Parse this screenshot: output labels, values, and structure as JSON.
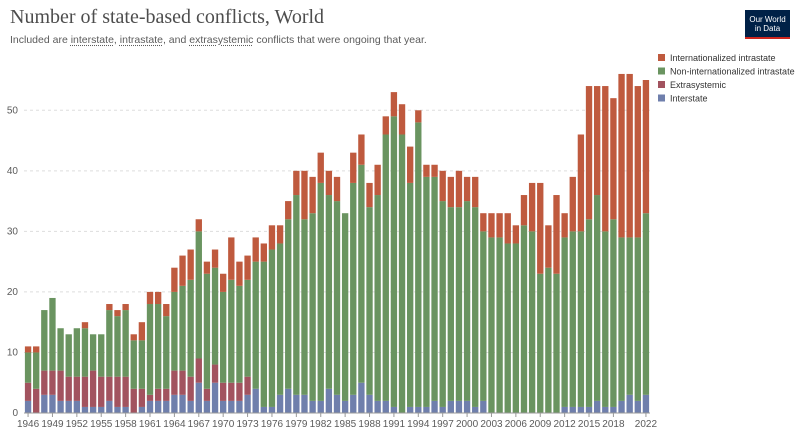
{
  "header": {
    "title": "Number of state-based conflicts, World",
    "subtitle_pre": "Included are ",
    "subtitle_link1": "interstate",
    "subtitle_sep1": ", ",
    "subtitle_link2": "intrastate",
    "subtitle_sep2": ", and ",
    "subtitle_link3": "extrasystemic",
    "subtitle_post": " conflicts that were ongoing that year."
  },
  "logo": {
    "line1": "Our World",
    "line2": "in Data"
  },
  "colors": {
    "Interstate": "#6f7fac",
    "Extrasystemic": "#a2535f",
    "Non-internationalized intrastate": "#6a9460",
    "Internationalized intrastate": "#bf5a3e",
    "grid": "#dddddd"
  },
  "chart_data": {
    "type": "bar",
    "stacked": true,
    "title": "Number of state-based conflicts, World",
    "ylim": [
      0,
      55
    ],
    "yticks": [
      0,
      10,
      20,
      30,
      40,
      50
    ],
    "grid": "horizontal dashed",
    "legend_position": "right",
    "x": [
      1946,
      1947,
      1948,
      1949,
      1950,
      1951,
      1952,
      1953,
      1954,
      1955,
      1956,
      1957,
      1958,
      1959,
      1960,
      1961,
      1962,
      1963,
      1964,
      1965,
      1966,
      1967,
      1968,
      1969,
      1970,
      1971,
      1972,
      1973,
      1974,
      1975,
      1976,
      1977,
      1978,
      1979,
      1980,
      1981,
      1982,
      1983,
      1984,
      1985,
      1986,
      1987,
      1988,
      1989,
      1990,
      1991,
      1992,
      1993,
      1994,
      1995,
      1996,
      1997,
      1998,
      1999,
      2000,
      2001,
      2002,
      2003,
      2004,
      2005,
      2006,
      2007,
      2008,
      2009,
      2010,
      2011,
      2012,
      2013,
      2014,
      2015,
      2016,
      2017,
      2018,
      2019,
      2020,
      2021,
      2022
    ],
    "xtick_labels": [
      "1946",
      "1949",
      "1952",
      "1955",
      "1958",
      "1961",
      "1964",
      "1967",
      "1970",
      "1973",
      "1976",
      "1979",
      "1982",
      "1985",
      "1988",
      "1991",
      "1994",
      "1997",
      "2000",
      "2003",
      "2006",
      "2009",
      "2012",
      "2015",
      "2018",
      "2022"
    ],
    "series": [
      {
        "name": "Interstate",
        "values": [
          2,
          0,
          3,
          3,
          2,
          2,
          2,
          1,
          1,
          1,
          2,
          1,
          1,
          0,
          1,
          2,
          2,
          2,
          3,
          3,
          2,
          5,
          2,
          5,
          2,
          2,
          2,
          3,
          4,
          1,
          1,
          3,
          4,
          3,
          3,
          2,
          2,
          4,
          3,
          2,
          3,
          5,
          3,
          2,
          2,
          1,
          0,
          1,
          1,
          1,
          2,
          1,
          2,
          2,
          2,
          1,
          2,
          0,
          0,
          0,
          0,
          0,
          0,
          0,
          0,
          0,
          1,
          1,
          1,
          1,
          2,
          1,
          1,
          2,
          3,
          2,
          3
        ]
      },
      {
        "name": "Extrasystemic",
        "values": [
          3,
          4,
          4,
          4,
          5,
          4,
          4,
          5,
          6,
          5,
          4,
          5,
          5,
          4,
          3,
          1,
          2,
          2,
          4,
          4,
          4,
          4,
          2,
          3,
          3,
          3,
          3,
          3,
          0,
          0,
          0,
          0,
          0,
          0,
          0,
          0,
          0,
          0,
          0,
          0,
          0,
          0,
          0,
          0,
          0,
          0,
          0,
          0,
          0,
          0,
          0,
          0,
          0,
          0,
          0,
          0,
          0,
          0,
          0,
          0,
          0,
          0,
          0,
          0,
          0,
          0,
          0,
          0,
          0,
          0,
          0,
          0,
          0,
          0,
          0,
          0,
          0
        ]
      },
      {
        "name": "Non-internationalized intrastate",
        "values": [
          5,
          6,
          10,
          12,
          7,
          7,
          8,
          8,
          6,
          7,
          11,
          10,
          11,
          8,
          8,
          15,
          14,
          12,
          13,
          14,
          16,
          21,
          19,
          16,
          15,
          17,
          16,
          16,
          21,
          24,
          26,
          25,
          28,
          33,
          29,
          31,
          36,
          32,
          32,
          31,
          35,
          36,
          31,
          34,
          44,
          48,
          46,
          37,
          47,
          38,
          37,
          34,
          32,
          32,
          33,
          33,
          28,
          29,
          29,
          28,
          28,
          31,
          30,
          23,
          24,
          23,
          28,
          29,
          29,
          31,
          34,
          29,
          31,
          27,
          26,
          27,
          30
        ]
      },
      {
        "name": "Internationalized intrastate",
        "values": [
          1,
          1,
          0,
          0,
          0,
          0,
          0,
          1,
          0,
          0,
          1,
          1,
          1,
          1,
          3,
          2,
          2,
          2,
          4,
          5,
          5,
          2,
          2,
          3,
          3,
          7,
          4,
          4,
          4,
          3,
          4,
          3,
          3,
          4,
          8,
          6,
          5,
          4,
          4,
          0,
          5,
          5,
          4,
          5,
          3,
          4,
          5,
          6,
          2,
          2,
          2,
          5,
          5,
          6,
          4,
          5,
          3,
          4,
          4,
          5,
          3,
          5,
          8,
          15,
          7,
          13,
          4,
          9,
          16,
          22,
          18,
          24,
          20,
          27,
          27,
          25,
          22
        ]
      }
    ]
  }
}
